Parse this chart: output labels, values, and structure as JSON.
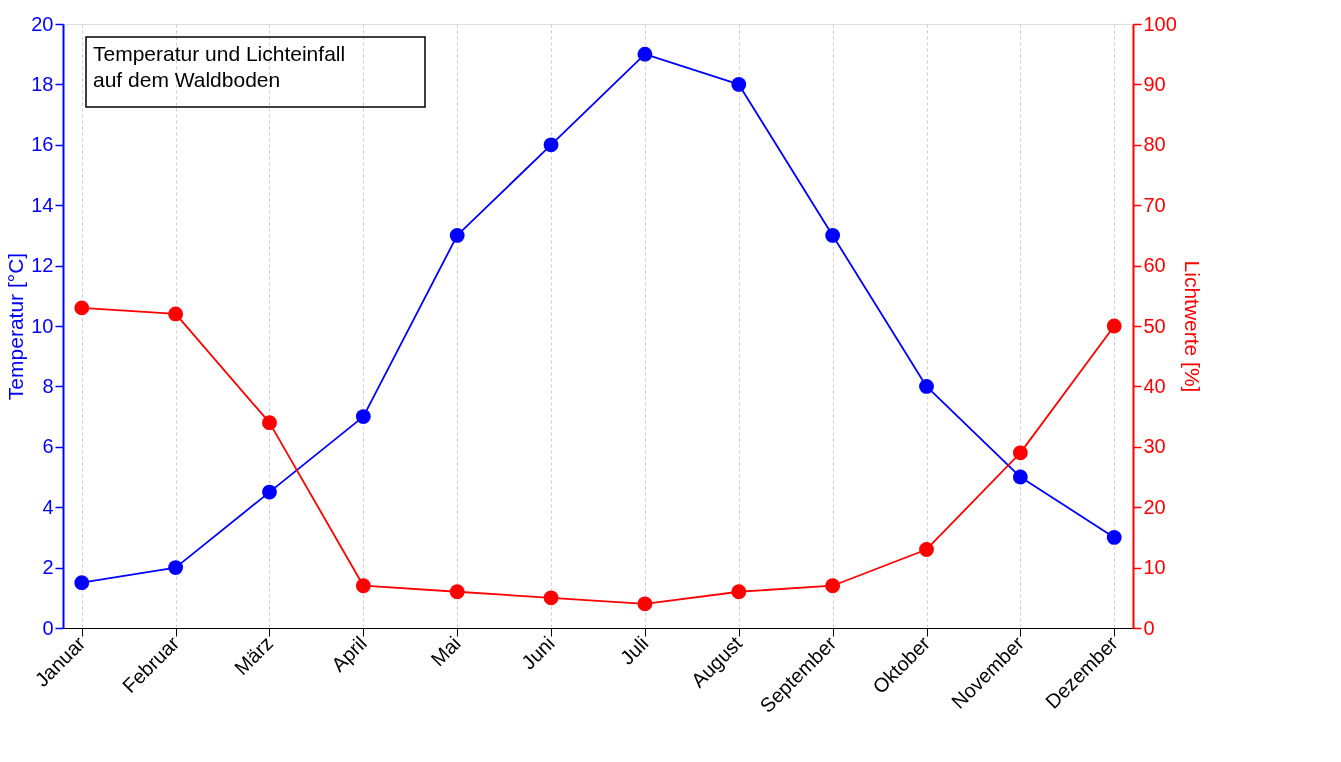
{
  "chart_data": {
    "type": "line",
    "title": "Temperatur und Lichteinfall\nauf dem Waldboden",
    "categories": [
      "Januar",
      "Februar",
      "März",
      "April",
      "Mai",
      "Juni",
      "Juli",
      "August",
      "September",
      "Oktober",
      "November",
      "Dezember"
    ],
    "ylabel": "Temperatur [°C]",
    "y2label": "Lichtwerte [%]",
    "ylim": [
      0,
      20
    ],
    "yticks": [
      0,
      2,
      4,
      6,
      8,
      10,
      12,
      14,
      16,
      18,
      20
    ],
    "y2lim": [
      0,
      100
    ],
    "y2ticks": [
      0,
      10,
      20,
      30,
      40,
      50,
      60,
      70,
      80,
      90,
      100
    ],
    "series": [
      {
        "color": "#0000ff",
        "values": [
          1.5,
          2,
          4.5,
          7,
          13,
          16,
          19,
          18,
          13,
          8,
          5,
          3
        ]
      },
      {
        "color": "#ff0000",
        "axis": "y2",
        "values": [
          53,
          52,
          34,
          7,
          6,
          5,
          4,
          6,
          7,
          13,
          29,
          50
        ]
      }
    ],
    "grid": "x",
    "marker": "circle",
    "line_style": "solid"
  }
}
